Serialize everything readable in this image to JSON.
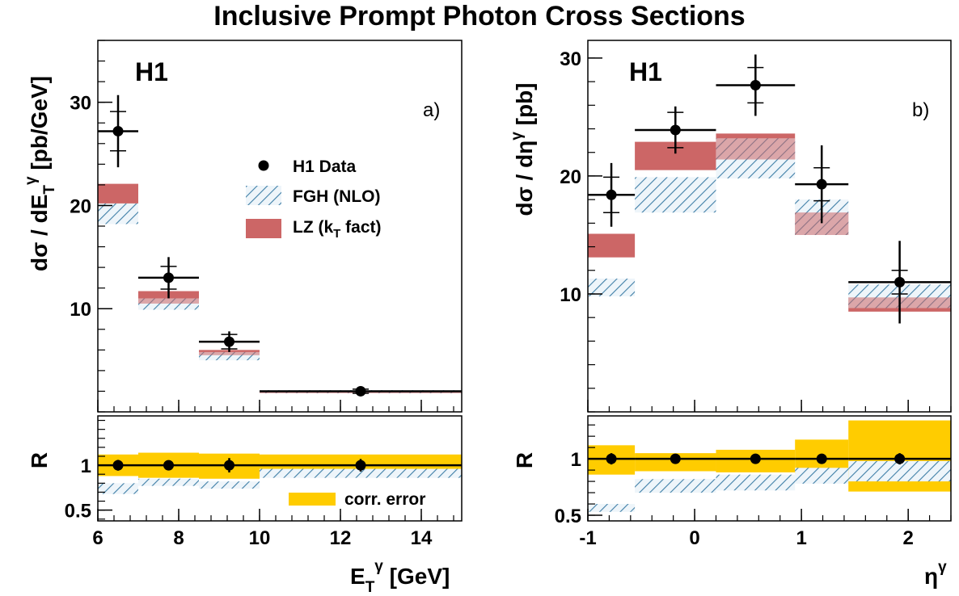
{
  "figure_title": "Inclusive Prompt Photon Cross Sections",
  "colors": {
    "data": "#000000",
    "fgh_hatch": "#3f7fa7",
    "fgh_fill": "#eef5fa",
    "lz_fill": "#cc6666",
    "corr_error": "#ffcc00"
  },
  "chart_data": [
    {
      "type": "bar",
      "panel_label": "a)",
      "experiment_label": "H1",
      "xlabel": "E_T^γ [GeV]",
      "ylabel": "dσ / dE_T^γ [pb/GeV]",
      "xlim": [
        6,
        15
      ],
      "ylim": [
        0,
        36
      ],
      "xticks": [
        6,
        8,
        10,
        12,
        14
      ],
      "yticks": [
        10,
        20,
        30
      ],
      "bins": [
        [
          6,
          7
        ],
        [
          7,
          8.5
        ],
        [
          8.5,
          10
        ],
        [
          10,
          15
        ]
      ],
      "legend": {
        "placement": "center-right",
        "entries": [
          {
            "label": "H1 Data",
            "style": "marker"
          },
          {
            "label": "FGH (NLO)",
            "style": "hatch"
          },
          {
            "label": "LZ (k_T fact)",
            "style": "fill"
          }
        ]
      },
      "series": [
        {
          "name": "H1 Data",
          "x": [
            6.5,
            7.75,
            9.25,
            12.5
          ],
          "y": [
            27.2,
            13.0,
            6.8,
            2.0
          ],
          "stat_err": [
            1.9,
            1.1,
            0.7,
            0.2
          ],
          "tot_err": [
            3.5,
            2.0,
            1.0,
            0.3
          ]
        },
        {
          "name": "FGH (NLO)",
          "low": [
            18.2,
            9.9,
            5.0,
            1.8
          ],
          "high": [
            20.2,
            11.0,
            5.8,
            2.1
          ]
        },
        {
          "name": "LZ (k_T fact)",
          "low": [
            20.2,
            10.5,
            5.5,
            1.8
          ],
          "high": [
            22.1,
            11.7,
            6.0,
            2.0
          ]
        }
      ],
      "ratio": {
        "ylabel": "R",
        "ylim": [
          0.38,
          1.55
        ],
        "yticks": [
          0.5,
          1
        ],
        "legend_label": "corr. error",
        "data_err": [
          0.06,
          0.04,
          0.08,
          0.07
        ],
        "corr_low": [
          0.88,
          0.86,
          0.85,
          0.87
        ],
        "corr_high": [
          1.12,
          1.14,
          1.13,
          1.12
        ],
        "fgh_low": [
          0.68,
          0.77,
          0.74,
          0.86
        ],
        "fgh_high": [
          0.8,
          0.85,
          0.82,
          0.96
        ]
      }
    },
    {
      "type": "bar",
      "panel_label": "b)",
      "experiment_label": "H1",
      "xlabel": "η^γ",
      "ylabel": "dσ / dη^γ [pb]",
      "xlim": [
        -1,
        2.4
      ],
      "ylim": [
        0,
        31.5
      ],
      "xticks": [
        -1,
        0,
        1,
        2
      ],
      "yticks": [
        10,
        20,
        30
      ],
      "bins": [
        [
          -1,
          -0.56
        ],
        [
          -0.56,
          0.2
        ],
        [
          0.2,
          0.94
        ],
        [
          0.94,
          1.44
        ],
        [
          1.44,
          2.4
        ]
      ],
      "series": [
        {
          "name": "H1 Data",
          "x": [
            -0.78,
            -0.18,
            0.57,
            1.19,
            1.92
          ],
          "y": [
            18.4,
            23.9,
            27.7,
            19.3,
            11.0
          ],
          "stat_err": [
            1.5,
            1.5,
            1.5,
            1.4,
            1.0
          ],
          "tot_err": [
            2.7,
            2.0,
            2.6,
            3.3,
            3.5
          ]
        },
        {
          "name": "FGH (NLO)",
          "low": [
            9.8,
            16.9,
            19.8,
            15.0,
            8.8
          ],
          "high": [
            11.3,
            19.9,
            23.2,
            18.0,
            10.8
          ]
        },
        {
          "name": "LZ (k_T fact)",
          "low": [
            13.1,
            20.5,
            21.4,
            15.0,
            8.5
          ],
          "high": [
            15.1,
            22.9,
            23.6,
            16.9,
            9.7
          ]
        }
      ],
      "ratio": {
        "ylabel": "R",
        "ylim": [
          0.45,
          1.38
        ],
        "yticks": [
          0.5,
          1
        ],
        "data_err": [
          0.05,
          0.04,
          0.03,
          0.04,
          0.05
        ],
        "corr_low": [
          0.86,
          0.89,
          0.88,
          0.87,
          0.71
        ],
        "corr_high": [
          1.12,
          1.05,
          1.08,
          1.17,
          1.34
        ],
        "fgh_low": [
          0.53,
          0.7,
          0.72,
          0.78,
          0.8
        ],
        "fgh_high": [
          0.6,
          0.82,
          0.86,
          0.92,
          0.98
        ]
      }
    }
  ]
}
